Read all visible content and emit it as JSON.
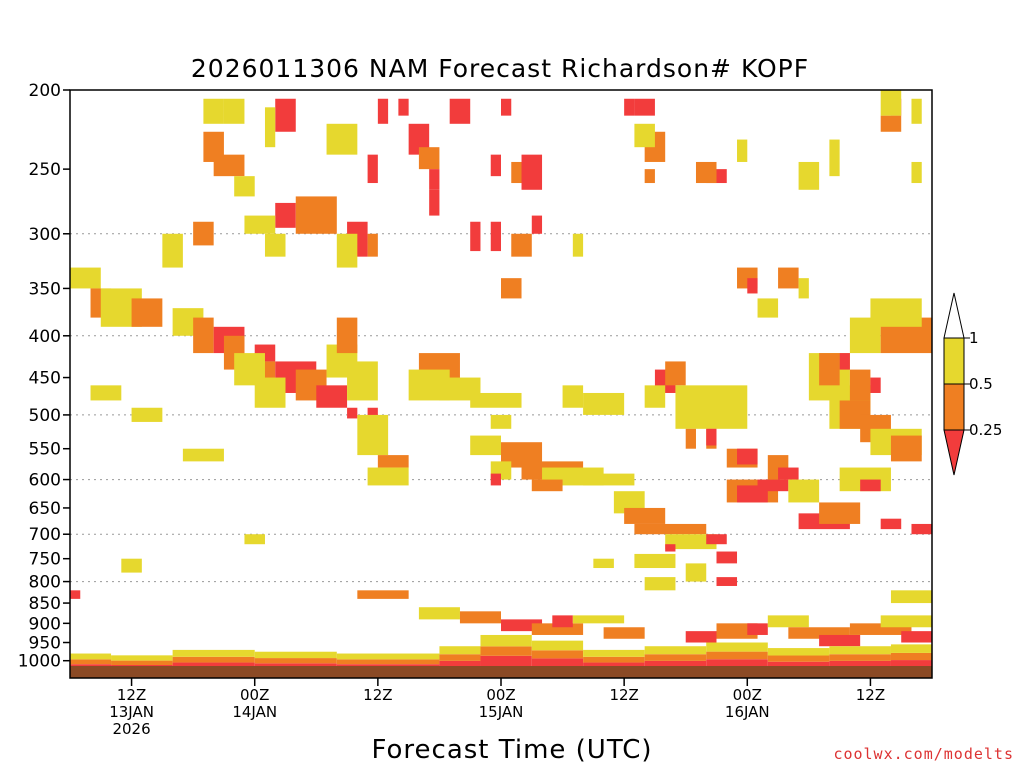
{
  "chart_data": {
    "type": "heatmap",
    "title": "2026011306 NAM Forecast Richardson# KOPF",
    "xlabel": "Forecast Time (UTC)",
    "ylabel": "",
    "y_ticks": [
      200,
      250,
      300,
      350,
      400,
      450,
      500,
      550,
      600,
      650,
      700,
      750,
      800,
      850,
      900,
      950,
      1000
    ],
    "y_range_hpa": [
      200,
      1050
    ],
    "x_range_hours": [
      0,
      84
    ],
    "x_ticks": [
      {
        "hour": 6,
        "lines": [
          "12Z",
          "13JAN",
          "2026"
        ]
      },
      {
        "hour": 18,
        "lines": [
          "00Z",
          "14JAN"
        ]
      },
      {
        "hour": 30,
        "lines": [
          "12Z"
        ]
      },
      {
        "hour": 42,
        "lines": [
          "00Z",
          "15JAN"
        ]
      },
      {
        "hour": 54,
        "lines": [
          "12Z"
        ]
      },
      {
        "hour": 66,
        "lines": [
          "00Z",
          "16JAN"
        ]
      },
      {
        "hour": 78,
        "lines": [
          "12Z"
        ]
      }
    ],
    "colorbar": {
      "labels": [
        "1",
        "0.5",
        "0.25"
      ],
      "bins": [
        {
          "range": "> 1",
          "color": "#ffffff"
        },
        {
          "range": "0.5 - 1",
          "color": "#e6d82e"
        },
        {
          "range": "0.25 - 0.5",
          "color": "#ef7f22"
        },
        {
          "range": "< 0.25",
          "color": "#f23c3c"
        }
      ]
    },
    "colors": {
      "yellow": "#e6d82e",
      "orange": "#ef7f22",
      "red": "#f23c3c",
      "ground": "#8b4a25"
    },
    "cells": [
      [
        "Y",
        13,
        15,
        205,
        220
      ],
      [
        "Y",
        15,
        17,
        205,
        220
      ],
      [
        "O",
        13,
        15,
        225,
        245
      ],
      [
        "O",
        14,
        17,
        240,
        255
      ],
      [
        "Y",
        16,
        18,
        255,
        270
      ],
      [
        "R",
        20,
        22,
        205,
        225
      ],
      [
        "Y",
        19,
        20,
        210,
        235
      ],
      [
        "R",
        30,
        31,
        205,
        220
      ],
      [
        "R",
        29,
        30,
        240,
        260
      ],
      [
        "R",
        32,
        33,
        205,
        215
      ],
      [
        "R",
        33,
        35,
        220,
        240
      ],
      [
        "O",
        34,
        36,
        235,
        250
      ],
      [
        "R",
        35,
        36,
        250,
        265
      ],
      [
        "Y",
        25,
        28,
        220,
        240
      ],
      [
        "R",
        37,
        39,
        205,
        220
      ],
      [
        "R",
        35,
        36,
        265,
        285
      ],
      [
        "R",
        41,
        42,
        240,
        255
      ],
      [
        "R",
        42,
        43,
        205,
        215
      ],
      [
        "O",
        43,
        45,
        245,
        260
      ],
      [
        "R",
        44,
        46,
        240,
        265
      ],
      [
        "R",
        54,
        55,
        205,
        215
      ],
      [
        "R",
        55,
        57,
        205,
        215
      ],
      [
        "O",
        56,
        58,
        225,
        245
      ],
      [
        "O",
        56,
        57,
        250,
        260
      ],
      [
        "Y",
        55,
        57,
        220,
        235
      ],
      [
        "R",
        62,
        64,
        250,
        260
      ],
      [
        "O",
        61,
        63,
        245,
        260
      ],
      [
        "Y",
        65,
        66,
        230,
        245
      ],
      [
        "Y",
        74,
        75,
        230,
        255
      ],
      [
        "Y",
        71,
        73,
        245,
        265
      ],
      [
        "R",
        80,
        81,
        205,
        215
      ],
      [
        "O",
        79,
        81,
        215,
        225
      ],
      [
        "Y",
        79,
        81,
        200,
        215
      ],
      [
        "Y",
        82,
        83,
        205,
        220
      ],
      [
        "Y",
        82,
        83,
        245,
        260
      ],
      [
        "R",
        20,
        22,
        275,
        295
      ],
      [
        "O",
        22,
        26,
        270,
        300
      ],
      [
        "Y",
        17,
        20,
        285,
        300
      ],
      [
        "Y",
        19,
        21,
        300,
        320
      ],
      [
        "R",
        27,
        29,
        290,
        320
      ],
      [
        "Y",
        26,
        28,
        300,
        330
      ],
      [
        "O",
        29,
        30,
        300,
        320
      ],
      [
        "R",
        39,
        40,
        290,
        315
      ],
      [
        "R",
        41,
        42,
        290,
        315
      ],
      [
        "O",
        43,
        45,
        300,
        320
      ],
      [
        "R",
        45,
        46,
        285,
        300
      ],
      [
        "Y",
        49,
        50,
        300,
        320
      ],
      [
        "O",
        42,
        44,
        340,
        360
      ],
      [
        "O",
        65,
        67,
        330,
        350
      ],
      [
        "R",
        66,
        67,
        340,
        355
      ],
      [
        "O",
        69,
        71,
        330,
        350
      ],
      [
        "Y",
        67,
        69,
        360,
        380
      ],
      [
        "Y",
        71,
        72,
        340,
        360
      ],
      [
        "O",
        12,
        14,
        290,
        310
      ],
      [
        "Y",
        9,
        11,
        300,
        330
      ],
      [
        "Y",
        0,
        3,
        330,
        350
      ],
      [
        "O",
        2,
        4,
        350,
        380
      ],
      [
        "Y",
        3,
        7,
        350,
        390
      ],
      [
        "O",
        6,
        9,
        360,
        390
      ],
      [
        "Y",
        10,
        13,
        370,
        400
      ],
      [
        "O",
        12,
        14,
        380,
        420
      ],
      [
        "R",
        14,
        17,
        390,
        420
      ],
      [
        "O",
        15,
        17,
        400,
        440
      ],
      [
        "R",
        18,
        20,
        410,
        430
      ],
      [
        "O",
        18,
        20,
        430,
        460
      ],
      [
        "R",
        20,
        24,
        430,
        470
      ],
      [
        "O",
        22,
        25,
        440,
        480
      ],
      [
        "R",
        24,
        27,
        460,
        490
      ],
      [
        "Y",
        16,
        19,
        420,
        460
      ],
      [
        "Y",
        18,
        21,
        450,
        490
      ],
      [
        "Y",
        25,
        28,
        410,
        450
      ],
      [
        "O",
        26,
        28,
        380,
        420
      ],
      [
        "Y",
        27,
        30,
        430,
        480
      ],
      [
        "R",
        27,
        28,
        490,
        505
      ],
      [
        "R",
        29,
        30,
        490,
        505
      ],
      [
        "Y",
        28,
        31,
        500,
        560
      ],
      [
        "O",
        30,
        33,
        560,
        580
      ],
      [
        "Y",
        29,
        33,
        580,
        610
      ],
      [
        "O",
        34,
        38,
        420,
        460
      ],
      [
        "Y",
        33,
        37,
        440,
        480
      ],
      [
        "Y",
        36,
        40,
        450,
        480
      ],
      [
        "Y",
        39,
        44,
        470,
        490
      ],
      [
        "Y",
        41,
        43,
        500,
        520
      ],
      [
        "Y",
        39,
        42,
        530,
        560
      ],
      [
        "O",
        42,
        46,
        540,
        580
      ],
      [
        "Y",
        41,
        43,
        570,
        600
      ],
      [
        "O",
        44,
        50,
        570,
        600
      ],
      [
        "Y",
        46,
        52,
        580,
        610
      ],
      [
        "O",
        45,
        48,
        600,
        620
      ],
      [
        "R",
        41,
        42,
        590,
        610
      ],
      [
        "Y",
        50,
        55,
        590,
        610
      ],
      [
        "Y",
        53,
        56,
        620,
        660
      ],
      [
        "O",
        54,
        58,
        650,
        680
      ],
      [
        "O",
        55,
        62,
        680,
        700
      ],
      [
        "Y",
        58,
        63,
        700,
        730
      ],
      [
        "Y",
        55,
        59,
        740,
        770
      ],
      [
        "Y",
        51,
        53,
        750,
        770
      ],
      [
        "R",
        58,
        59,
        720,
        735
      ],
      [
        "R",
        62,
        64,
        700,
        720
      ],
      [
        "R",
        63,
        65,
        735,
        760
      ],
      [
        "O",
        64,
        69,
        600,
        640
      ],
      [
        "R",
        65,
        68,
        610,
        640
      ],
      [
        "R",
        67,
        70,
        600,
        620
      ],
      [
        "O",
        64,
        67,
        550,
        580
      ],
      [
        "R",
        65,
        67,
        550,
        575
      ],
      [
        "O",
        68,
        70,
        560,
        600
      ],
      [
        "R",
        69,
        71,
        580,
        600
      ],
      [
        "Y",
        70,
        73,
        600,
        640
      ],
      [
        "R",
        71,
        76,
        660,
        690
      ],
      [
        "O",
        73,
        77,
        640,
        680
      ],
      [
        "R",
        79,
        81,
        670,
        690
      ],
      [
        "R",
        82,
        84,
        680,
        700
      ],
      [
        "Y",
        75,
        80,
        580,
        620
      ],
      [
        "Y",
        74,
        78,
        460,
        520
      ],
      [
        "O",
        75,
        78,
        480,
        520
      ],
      [
        "O",
        77,
        80,
        500,
        540
      ],
      [
        "R",
        77,
        79,
        600,
        620
      ],
      [
        "Y",
        78,
        83,
        520,
        560
      ],
      [
        "O",
        80,
        83,
        530,
        570
      ],
      [
        "R",
        57,
        59,
        440,
        470
      ],
      [
        "Y",
        56,
        58,
        460,
        490
      ],
      [
        "O",
        58,
        60,
        430,
        460
      ],
      [
        "Y",
        59,
        63,
        460,
        520
      ],
      [
        "O",
        60,
        61,
        520,
        550
      ],
      [
        "O",
        62,
        63,
        520,
        550
      ],
      [
        "R",
        62,
        63,
        520,
        545
      ],
      [
        "Y",
        76,
        79,
        380,
        420
      ],
      [
        "O",
        79,
        84,
        380,
        420
      ],
      [
        "Y",
        78,
        83,
        360,
        390
      ],
      [
        "Y",
        72,
        76,
        420,
        480
      ],
      [
        "O",
        73,
        75,
        420,
        460
      ],
      [
        "R",
        75,
        76,
        420,
        440
      ],
      [
        "O",
        76,
        78,
        440,
        480
      ],
      [
        "R",
        78,
        79,
        450,
        470
      ],
      [
        "Y",
        63,
        66,
        460,
        520
      ],
      [
        "Y",
        50,
        54,
        470,
        500
      ],
      [
        "Y",
        48,
        50,
        460,
        490
      ],
      [
        "Y",
        2,
        5,
        460,
        480
      ],
      [
        "Y",
        6,
        9,
        490,
        510
      ],
      [
        "Y",
        11,
        15,
        550,
        570
      ],
      [
        "Y",
        17,
        19,
        700,
        720
      ],
      [
        "Y",
        60,
        62,
        760,
        800
      ],
      [
        "Y",
        56,
        59,
        790,
        820
      ],
      [
        "R",
        63,
        65,
        790,
        810
      ],
      [
        "Y",
        80,
        84,
        820,
        850
      ],
      [
        "R",
        0,
        1,
        820,
        840
      ],
      [
        "Y",
        5,
        7,
        750,
        780
      ],
      [
        "O",
        28,
        33,
        820,
        840
      ],
      [
        "Y",
        34,
        38,
        860,
        890
      ],
      [
        "O",
        38,
        42,
        870,
        900
      ],
      [
        "R",
        42,
        46,
        890,
        920
      ],
      [
        "O",
        45,
        50,
        900,
        930
      ],
      [
        "R",
        47,
        49,
        880,
        910
      ],
      [
        "Y",
        49,
        54,
        880,
        900
      ],
      [
        "O",
        52,
        56,
        910,
        940
      ],
      [
        "R",
        60,
        63,
        920,
        950
      ],
      [
        "O",
        63,
        67,
        900,
        940
      ],
      [
        "R",
        66,
        68,
        900,
        930
      ],
      [
        "Y",
        68,
        72,
        880,
        910
      ],
      [
        "O",
        70,
        76,
        910,
        940
      ],
      [
        "R",
        73,
        77,
        930,
        960
      ],
      [
        "O",
        76,
        82,
        900,
        930
      ],
      [
        "Y",
        79,
        84,
        880,
        910
      ],
      [
        "R",
        81,
        84,
        920,
        950
      ]
    ],
    "sfc_band": [
      {
        "x0": 0,
        "x1": 4,
        "p": 980
      },
      {
        "x0": 4,
        "x1": 10,
        "p": 985
      },
      {
        "x0": 10,
        "x1": 18,
        "p": 970
      },
      {
        "x0": 18,
        "x1": 26,
        "p": 975
      },
      {
        "x0": 26,
        "x1": 36,
        "p": 980
      },
      {
        "x0": 36,
        "x1": 40,
        "p": 960
      },
      {
        "x0": 40,
        "x1": 45,
        "p": 930
      },
      {
        "x0": 45,
        "x1": 50,
        "p": 945
      },
      {
        "x0": 50,
        "x1": 56,
        "p": 970
      },
      {
        "x0": 56,
        "x1": 62,
        "p": 960
      },
      {
        "x0": 62,
        "x1": 68,
        "p": 950
      },
      {
        "x0": 68,
        "x1": 74,
        "p": 965
      },
      {
        "x0": 74,
        "x1": 80,
        "p": 960
      },
      {
        "x0": 80,
        "x1": 84,
        "p": 955
      }
    ]
  },
  "credit": "coolwx.com/modelts"
}
